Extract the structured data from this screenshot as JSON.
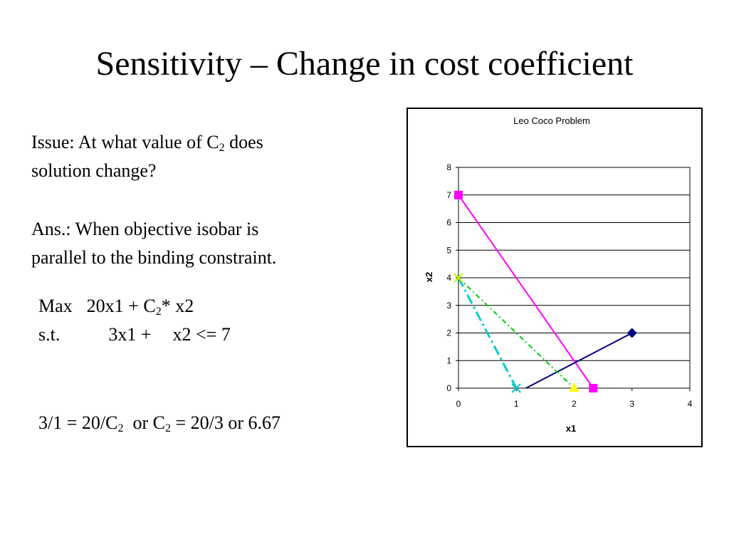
{
  "slide": {
    "title": "Sensitivity – Change in cost coefficient",
    "issue": {
      "line1_pre": "Issue: At what value of C",
      "line1_sub": "2",
      "line1_post": " does",
      "line2": "solution change?"
    },
    "answer": {
      "line1": "Ans.: When objective isobar is",
      "line2": "parallel to the binding constraint."
    },
    "model": {
      "max_label": "Max",
      "objective_pre": "20x1 + C",
      "objective_sub": "2",
      "objective_post": "* x2",
      "st_label": "s.t.",
      "constraint_part1": "3x1 +",
      "constraint_part2": "x2 <= 7"
    },
    "result": {
      "part1": "3/1 = 20/C",
      "sub1": "2",
      "part2": "  or C",
      "sub2": "2",
      "part3": " = 20/3 or 6.67"
    }
  },
  "chart_data": {
    "type": "line",
    "title": "Leo Coco Problem",
    "xlabel": "x1",
    "ylabel": "x2",
    "xlim": [
      0,
      4
    ],
    "ylim": [
      0,
      8
    ],
    "xticks": [
      0,
      1,
      2,
      3,
      4
    ],
    "yticks": [
      0,
      1,
      2,
      3,
      4,
      5,
      6,
      7,
      8
    ],
    "grid": "horizontal",
    "legend": "none",
    "series": [
      {
        "color": "#ff00ff",
        "style": "solid",
        "marker": "square",
        "points": [
          [
            0,
            7
          ],
          [
            2.33,
            0
          ]
        ]
      },
      {
        "color": "#000080",
        "style": "solid",
        "marker": "diamond",
        "points": [
          [
            0.8,
            -0.4
          ],
          [
            3,
            2
          ]
        ]
      },
      {
        "color": "#00cccc",
        "style": "dashdot",
        "marker": "x",
        "points": [
          [
            0,
            4
          ],
          [
            1,
            0
          ]
        ]
      },
      {
        "color": "#00cc00",
        "style": "dashdot-fine",
        "marker": "triangle",
        "points": [
          [
            0,
            4
          ],
          [
            2,
            0
          ]
        ]
      }
    ]
  }
}
